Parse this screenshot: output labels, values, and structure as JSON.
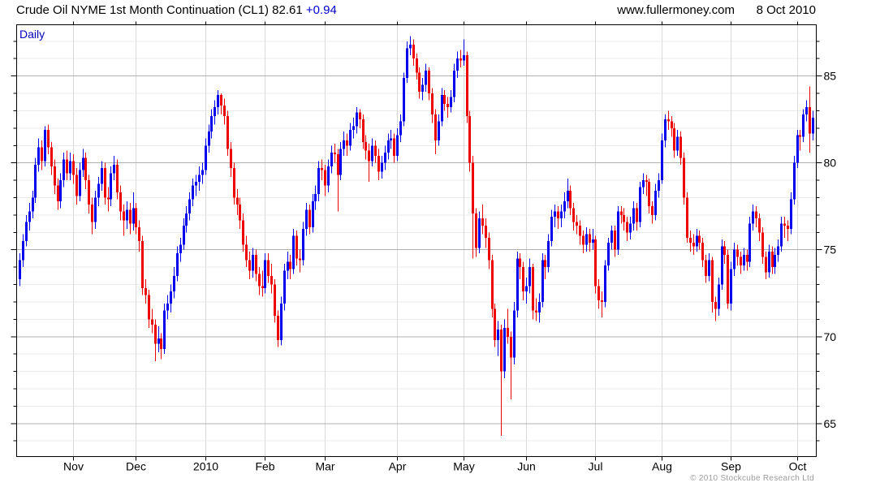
{
  "header": {
    "title_main": "Crude Oil NYME 1st Month Continuation (CL1) 82.61",
    "change": "+0.94",
    "site": "www.fullermoney.com",
    "date": "8 Oct 2010"
  },
  "chart": {
    "frequency_label": "Daily",
    "copyright": "© 2010 Stockcube Research Ltd"
  },
  "colors": {
    "up_bar": "#0000ee",
    "down_bar": "#ee0000",
    "grid_major": "#b0b0b0",
    "grid_minor": "#ebebeb",
    "grid_month": "#d9d9d9",
    "axis": "#000000",
    "label_text": "#000000",
    "accent_text": "#0000cc"
  },
  "chart_data": {
    "type": "candlestick",
    "title": "Crude Oil NYME 1st Month Continuation (CL1)",
    "frequency": "Daily",
    "last_price": 82.61,
    "change": 0.94,
    "as_of": "8 Oct 2010",
    "ylim": [
      63.1,
      87.95
    ],
    "y_major_ticks": [
      85,
      80,
      75,
      70,
      65
    ],
    "y_minor_step": 1,
    "grid": "on",
    "x_ticks": [
      {
        "label": "Nov",
        "index": 17
      },
      {
        "label": "Dec",
        "index": 37
      },
      {
        "label": "2010",
        "index": 59
      },
      {
        "label": "Feb",
        "index": 78
      },
      {
        "label": "Mar",
        "index": 97
      },
      {
        "label": "Apr",
        "index": 120
      },
      {
        "label": "May",
        "index": 141
      },
      {
        "label": "Jun",
        "index": 161
      },
      {
        "label": "Jul",
        "index": 183
      },
      {
        "label": "Aug",
        "index": 204
      },
      {
        "label": "Sep",
        "index": 226
      },
      {
        "label": "Oct",
        "index": 247
      }
    ],
    "bars_format": [
      "open",
      "high",
      "low",
      "close"
    ],
    "bars": [
      [
        73.3,
        74.8,
        72.9,
        74.4
      ],
      [
        74.4,
        75.9,
        74.0,
        75.5
      ],
      [
        75.5,
        77.0,
        75.2,
        76.6
      ],
      [
        76.6,
        77.7,
        76.1,
        77.2
      ],
      [
        77.2,
        78.4,
        76.8,
        78.0
      ],
      [
        78.0,
        80.3,
        77.7,
        79.9
      ],
      [
        79.9,
        81.4,
        79.5,
        80.9
      ],
      [
        80.9,
        81.3,
        79.6,
        80.1
      ],
      [
        80.1,
        82.1,
        79.8,
        81.9
      ],
      [
        81.9,
        82.2,
        80.5,
        80.9
      ],
      [
        80.9,
        81.2,
        79.3,
        79.8
      ],
      [
        79.8,
        80.2,
        78.2,
        78.7
      ],
      [
        78.7,
        79.1,
        77.3,
        77.8
      ],
      [
        77.8,
        79.4,
        77.4,
        79.0
      ],
      [
        79.0,
        80.6,
        78.6,
        80.2
      ],
      [
        80.2,
        80.7,
        79.0,
        79.4
      ],
      [
        79.4,
        80.6,
        79.0,
        80.1
      ],
      [
        80.1,
        80.5,
        78.8,
        79.3
      ],
      [
        79.3,
        79.7,
        77.6,
        78.1
      ],
      [
        78.1,
        80.0,
        77.8,
        79.6
      ],
      [
        79.6,
        80.8,
        79.2,
        80.3
      ],
      [
        80.3,
        80.6,
        78.5,
        79.0
      ],
      [
        79.0,
        79.3,
        77.1,
        77.6
      ],
      [
        77.6,
        78.0,
        75.9,
        76.6
      ],
      [
        76.6,
        78.4,
        76.2,
        78.0
      ],
      [
        78.0,
        79.2,
        77.5,
        78.8
      ],
      [
        78.8,
        80.1,
        78.4,
        79.7
      ],
      [
        79.7,
        80.0,
        77.6,
        78.0
      ],
      [
        78.0,
        78.6,
        77.2,
        77.9
      ],
      [
        77.9,
        79.8,
        77.5,
        79.4
      ],
      [
        79.4,
        80.4,
        79.0,
        79.9
      ],
      [
        79.9,
        80.2,
        77.9,
        78.3
      ],
      [
        78.3,
        78.7,
        76.7,
        77.2
      ],
      [
        77.2,
        77.6,
        75.8,
        76.7
      ],
      [
        76.7,
        77.8,
        76.2,
        77.3
      ],
      [
        77.3,
        77.7,
        75.9,
        76.5
      ],
      [
        76.5,
        78.3,
        76.1,
        77.4
      ],
      [
        77.4,
        77.7,
        75.9,
        76.3
      ],
      [
        76.3,
        76.7,
        74.9,
        75.5
      ],
      [
        75.5,
        75.8,
        72.4,
        72.8
      ],
      [
        72.8,
        73.3,
        71.9,
        72.4
      ],
      [
        72.4,
        72.7,
        70.5,
        71.0
      ],
      [
        71.0,
        71.6,
        70.2,
        70.7
      ],
      [
        70.7,
        71.0,
        68.6,
        69.6
      ],
      [
        69.6,
        70.6,
        69.1,
        69.9
      ],
      [
        69.9,
        70.2,
        68.7,
        69.3
      ],
      [
        69.3,
        71.9,
        69.0,
        71.5
      ],
      [
        71.5,
        72.4,
        71.0,
        71.9
      ],
      [
        71.9,
        73.0,
        71.4,
        72.6
      ],
      [
        72.6,
        74.0,
        72.2,
        73.5
      ],
      [
        73.5,
        75.2,
        73.2,
        74.8
      ],
      [
        74.8,
        75.7,
        74.3,
        75.3
      ],
      [
        75.3,
        76.8,
        75.0,
        76.4
      ],
      [
        76.4,
        77.5,
        76.0,
        77.1
      ],
      [
        77.1,
        78.3,
        76.7,
        77.9
      ],
      [
        77.9,
        79.1,
        77.5,
        78.7
      ],
      [
        78.7,
        79.3,
        78.1,
        78.9
      ],
      [
        78.9,
        79.8,
        78.4,
        79.3
      ],
      [
        79.3,
        80.0,
        78.8,
        79.6
      ],
      [
        79.6,
        81.4,
        79.3,
        81.0
      ],
      [
        81.0,
        82.2,
        80.6,
        81.8
      ],
      [
        81.8,
        83.1,
        81.4,
        82.7
      ],
      [
        82.7,
        83.6,
        82.2,
        83.2
      ],
      [
        83.2,
        84.2,
        82.8,
        83.9
      ],
      [
        83.9,
        84.0,
        82.8,
        83.3
      ],
      [
        83.3,
        83.7,
        82.2,
        82.7
      ],
      [
        82.7,
        83.0,
        80.4,
        80.8
      ],
      [
        80.8,
        81.2,
        79.2,
        79.7
      ],
      [
        79.7,
        80.0,
        77.6,
        78.0
      ],
      [
        78.0,
        78.5,
        77.0,
        77.6
      ],
      [
        77.6,
        78.0,
        76.2,
        76.7
      ],
      [
        76.7,
        77.1,
        74.9,
        75.3
      ],
      [
        75.3,
        75.8,
        74.0,
        74.4
      ],
      [
        74.4,
        74.9,
        73.3,
        73.8
      ],
      [
        73.8,
        75.1,
        73.4,
        74.7
      ],
      [
        74.7,
        75.0,
        73.2,
        73.6
      ],
      [
        73.6,
        74.0,
        72.4,
        72.9
      ],
      [
        72.9,
        73.8,
        72.3,
        72.8
      ],
      [
        72.8,
        74.8,
        72.5,
        74.4
      ],
      [
        74.4,
        74.8,
        73.1,
        73.5
      ],
      [
        73.5,
        74.2,
        72.5,
        73.0
      ],
      [
        73.0,
        73.3,
        70.8,
        71.2
      ],
      [
        71.2,
        71.5,
        69.4,
        69.8
      ],
      [
        69.8,
        72.3,
        69.5,
        71.9
      ],
      [
        71.9,
        74.2,
        71.5,
        73.8
      ],
      [
        73.8,
        74.9,
        73.3,
        74.3
      ],
      [
        74.3,
        74.7,
        73.3,
        73.9
      ],
      [
        73.9,
        76.2,
        73.6,
        75.8
      ],
      [
        75.8,
        76.1,
        74.1,
        74.5
      ],
      [
        74.5,
        75.0,
        73.7,
        74.4
      ],
      [
        74.4,
        76.6,
        74.1,
        76.2
      ],
      [
        76.2,
        77.7,
        75.8,
        77.3
      ],
      [
        77.3,
        77.6,
        75.9,
        76.3
      ],
      [
        76.3,
        78.2,
        76.0,
        77.8
      ],
      [
        77.8,
        78.7,
        77.3,
        78.2
      ],
      [
        78.2,
        80.1,
        77.8,
        79.7
      ],
      [
        79.7,
        80.2,
        79.0,
        79.6
      ],
      [
        79.6,
        79.9,
        78.1,
        78.7
      ],
      [
        78.7,
        80.2,
        78.3,
        79.8
      ],
      [
        79.8,
        81.0,
        79.4,
        80.6
      ],
      [
        80.6,
        81.1,
        80.0,
        80.5
      ],
      [
        80.5,
        80.8,
        77.2,
        79.3
      ],
      [
        79.3,
        81.2,
        79.0,
        80.8
      ],
      [
        80.8,
        81.8,
        80.4,
        81.3
      ],
      [
        81.3,
        81.7,
        80.4,
        81.0
      ],
      [
        81.0,
        82.3,
        80.7,
        81.9
      ],
      [
        81.9,
        82.6,
        81.4,
        82.1
      ],
      [
        82.1,
        83.2,
        81.7,
        82.9
      ],
      [
        82.9,
        83.1,
        82.0,
        82.5
      ],
      [
        82.5,
        82.8,
        80.8,
        81.2
      ],
      [
        81.2,
        81.6,
        80.2,
        80.7
      ],
      [
        80.7,
        81.1,
        78.9,
        80.1
      ],
      [
        80.1,
        81.4,
        79.8,
        81.0
      ],
      [
        81.0,
        81.3,
        80.0,
        80.4
      ],
      [
        80.4,
        80.8,
        79.0,
        79.5
      ],
      [
        79.5,
        80.4,
        79.1,
        80.0
      ],
      [
        80.0,
        81.0,
        79.6,
        80.6
      ],
      [
        80.6,
        81.7,
        80.2,
        81.3
      ],
      [
        81.3,
        81.9,
        80.8,
        81.4
      ],
      [
        81.4,
        81.7,
        80.0,
        80.4
      ],
      [
        80.4,
        82.0,
        80.1,
        81.6
      ],
      [
        81.6,
        82.8,
        81.2,
        82.4
      ],
      [
        82.4,
        85.2,
        82.1,
        84.9
      ],
      [
        84.9,
        87.0,
        84.6,
        86.6
      ],
      [
        86.6,
        87.3,
        86.2,
        86.8
      ],
      [
        86.8,
        87.1,
        85.6,
        86.0
      ],
      [
        86.0,
        86.3,
        84.8,
        85.2
      ],
      [
        85.2,
        85.5,
        83.7,
        84.1
      ],
      [
        84.1,
        84.9,
        83.6,
        84.5
      ],
      [
        84.5,
        85.7,
        84.1,
        85.3
      ],
      [
        85.3,
        85.5,
        83.6,
        84.0
      ],
      [
        84.0,
        84.3,
        82.3,
        82.8
      ],
      [
        82.8,
        83.1,
        80.5,
        81.3
      ],
      [
        81.3,
        82.8,
        81.0,
        82.4
      ],
      [
        82.4,
        84.3,
        82.1,
        83.9
      ],
      [
        83.9,
        84.2,
        83.0,
        83.4
      ],
      [
        83.4,
        83.8,
        82.6,
        83.2
      ],
      [
        83.2,
        84.2,
        82.9,
        83.8
      ],
      [
        83.8,
        85.7,
        83.5,
        85.3
      ],
      [
        85.3,
        86.4,
        84.9,
        86.0
      ],
      [
        86.0,
        86.5,
        85.5,
        85.9
      ],
      [
        85.9,
        87.1,
        85.6,
        86.2
      ],
      [
        86.2,
        86.4,
        82.3,
        82.7
      ],
      [
        82.7,
        83.0,
        79.5,
        80.0
      ],
      [
        80.0,
        80.4,
        74.5,
        77.1
      ],
      [
        77.1,
        77.4,
        74.6,
        75.1
      ],
      [
        75.1,
        77.2,
        74.8,
        76.8
      ],
      [
        76.8,
        77.6,
        75.9,
        76.4
      ],
      [
        76.4,
        76.8,
        75.1,
        75.7
      ],
      [
        75.7,
        76.0,
        73.9,
        74.4
      ],
      [
        74.4,
        74.7,
        71.1,
        71.6
      ],
      [
        71.6,
        71.9,
        69.4,
        69.8
      ],
      [
        69.8,
        70.9,
        68.9,
        70.4
      ],
      [
        70.4,
        70.7,
        64.3,
        68.0
      ],
      [
        68.0,
        71.0,
        67.6,
        70.5
      ],
      [
        70.5,
        71.6,
        69.6,
        70.0
      ],
      [
        70.0,
        70.3,
        66.4,
        68.8
      ],
      [
        68.8,
        72.0,
        68.4,
        71.5
      ],
      [
        71.5,
        74.9,
        71.1,
        74.5
      ],
      [
        74.5,
        74.8,
        73.3,
        74.0
      ],
      [
        74.0,
        74.3,
        72.1,
        72.6
      ],
      [
        72.6,
        73.4,
        71.9,
        72.9
      ],
      [
        72.9,
        74.5,
        72.5,
        74.0
      ],
      [
        74.0,
        74.2,
        71.0,
        71.5
      ],
      [
        71.5,
        72.2,
        70.9,
        71.4
      ],
      [
        71.4,
        72.5,
        70.8,
        72.0
      ],
      [
        72.0,
        74.8,
        71.7,
        74.4
      ],
      [
        74.4,
        74.7,
        73.3,
        74.0
      ],
      [
        74.0,
        75.9,
        73.7,
        75.5
      ],
      [
        75.5,
        77.3,
        75.2,
        76.9
      ],
      [
        76.9,
        77.6,
        76.3,
        77.2
      ],
      [
        77.2,
        77.5,
        76.2,
        76.8
      ],
      [
        76.8,
        77.6,
        76.3,
        77.2
      ],
      [
        77.2,
        78.3,
        76.8,
        77.8
      ],
      [
        77.8,
        79.1,
        77.4,
        78.4
      ],
      [
        78.4,
        78.7,
        77.0,
        77.4
      ],
      [
        77.4,
        77.7,
        76.1,
        76.6
      ],
      [
        76.6,
        77.0,
        75.9,
        76.4
      ],
      [
        76.4,
        76.7,
        75.3,
        75.8
      ],
      [
        75.8,
        76.1,
        74.8,
        75.3
      ],
      [
        75.3,
        76.3,
        74.9,
        75.9
      ],
      [
        75.9,
        76.2,
        74.9,
        75.4
      ],
      [
        75.4,
        76.2,
        75.0,
        75.6
      ],
      [
        75.6,
        75.8,
        72.5,
        72.9
      ],
      [
        72.9,
        73.3,
        71.6,
        72.1
      ],
      [
        72.1,
        72.6,
        71.1,
        72.0
      ],
      [
        72.0,
        74.4,
        71.7,
        74.1
      ],
      [
        74.1,
        75.7,
        73.8,
        75.4
      ],
      [
        75.4,
        76.4,
        75.0,
        76.1
      ],
      [
        76.1,
        76.4,
        74.6,
        75.0
      ],
      [
        75.0,
        77.5,
        74.7,
        77.2
      ],
      [
        77.2,
        77.5,
        76.5,
        77.0
      ],
      [
        77.0,
        77.4,
        76.1,
        76.6
      ],
      [
        76.6,
        76.9,
        75.5,
        76.0
      ],
      [
        76.0,
        76.9,
        75.6,
        76.5
      ],
      [
        76.5,
        77.8,
        76.1,
        77.4
      ],
      [
        77.4,
        77.7,
        76.1,
        76.6
      ],
      [
        76.6,
        78.9,
        76.3,
        78.6
      ],
      [
        78.6,
        79.4,
        78.2,
        79.0
      ],
      [
        79.0,
        79.3,
        78.1,
        78.9
      ],
      [
        78.9,
        79.1,
        77.1,
        77.5
      ],
      [
        77.5,
        77.8,
        76.5,
        77.0
      ],
      [
        77.0,
        78.8,
        76.7,
        78.4
      ],
      [
        78.4,
        79.4,
        78.0,
        79.0
      ],
      [
        79.0,
        81.7,
        78.8,
        81.3
      ],
      [
        81.3,
        82.8,
        80.9,
        82.5
      ],
      [
        82.5,
        83.0,
        81.9,
        82.4
      ],
      [
        82.4,
        82.7,
        81.5,
        82.0
      ],
      [
        82.0,
        82.3,
        80.3,
        80.7
      ],
      [
        80.7,
        81.9,
        80.4,
        81.5
      ],
      [
        81.5,
        81.8,
        79.9,
        80.3
      ],
      [
        80.3,
        80.6,
        77.6,
        78.0
      ],
      [
        78.0,
        78.3,
        75.4,
        75.7
      ],
      [
        75.7,
        76.1,
        74.9,
        75.4
      ],
      [
        75.4,
        75.9,
        74.7,
        75.2
      ],
      [
        75.2,
        76.2,
        74.9,
        75.8
      ],
      [
        75.8,
        76.1,
        75.0,
        75.4
      ],
      [
        75.4,
        75.7,
        74.0,
        74.4
      ],
      [
        74.4,
        74.7,
        73.1,
        73.5
      ],
      [
        73.5,
        74.8,
        73.2,
        74.4
      ],
      [
        74.4,
        74.6,
        71.4,
        72.0
      ],
      [
        72.0,
        72.3,
        70.9,
        71.6
      ],
      [
        71.6,
        73.4,
        71.2,
        73.0
      ],
      [
        73.0,
        75.6,
        72.7,
        75.2
      ],
      [
        75.2,
        75.5,
        74.2,
        74.7
      ],
      [
        74.7,
        75.0,
        71.6,
        71.9
      ],
      [
        71.9,
        74.3,
        71.5,
        73.9
      ],
      [
        73.9,
        75.4,
        73.5,
        75.0
      ],
      [
        75.0,
        75.3,
        74.1,
        74.6
      ],
      [
        74.6,
        74.9,
        73.6,
        74.1
      ],
      [
        74.1,
        75.1,
        73.8,
        74.7
      ],
      [
        74.7,
        75.0,
        73.8,
        74.3
      ],
      [
        74.3,
        76.9,
        74.0,
        76.5
      ],
      [
        76.5,
        77.6,
        76.1,
        77.2
      ],
      [
        77.2,
        77.5,
        76.3,
        76.8
      ],
      [
        76.8,
        77.1,
        75.5,
        76.0
      ],
      [
        76.0,
        76.3,
        74.2,
        74.6
      ],
      [
        74.6,
        74.9,
        73.3,
        73.7
      ],
      [
        73.7,
        75.3,
        73.4,
        74.9
      ],
      [
        74.9,
        75.2,
        73.6,
        74.0
      ],
      [
        74.0,
        75.1,
        73.6,
        74.7
      ],
      [
        74.7,
        75.6,
        74.3,
        75.2
      ],
      [
        75.2,
        76.9,
        74.9,
        76.5
      ],
      [
        76.5,
        76.9,
        75.7,
        76.4
      ],
      [
        76.4,
        76.7,
        75.5,
        76.2
      ],
      [
        76.2,
        78.3,
        75.9,
        77.9
      ],
      [
        77.9,
        80.4,
        77.6,
        80.0
      ],
      [
        80.0,
        81.9,
        79.7,
        81.6
      ],
      [
        81.6,
        81.9,
        80.7,
        81.5
      ],
      [
        81.5,
        83.1,
        81.2,
        82.8
      ],
      [
        82.8,
        83.6,
        82.4,
        83.2
      ],
      [
        83.2,
        84.4,
        80.6,
        81.7
      ],
      [
        81.7,
        83.0,
        81.3,
        82.6
      ]
    ]
  }
}
